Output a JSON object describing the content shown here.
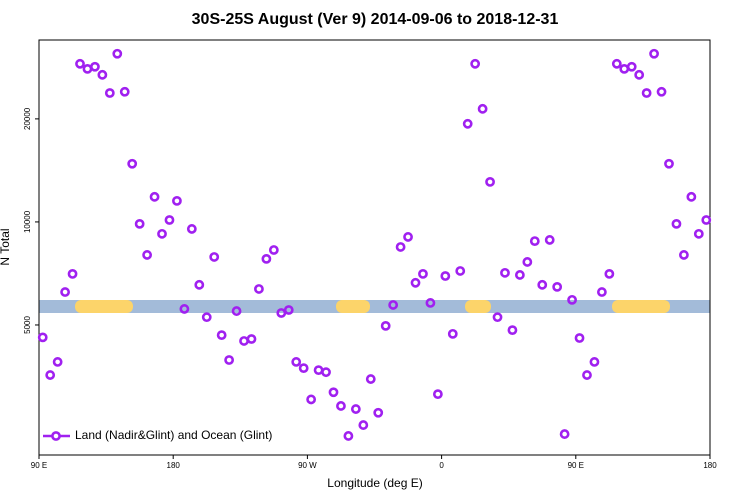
{
  "chart_data": {
    "type": "scatter",
    "title": "30S-25S August (Ver 9)   2014-09-06 to 2018-12-31",
    "x_label": "Longitude (deg E)",
    "y_label": "N Total",
    "xlim": [
      90,
      540
    ],
    "xticks": [
      {
        "value": 90,
        "label": "90 E"
      },
      {
        "value": 180,
        "label": "180"
      },
      {
        "value": 270,
        "label": "90 W"
      },
      {
        "value": 360,
        "label": "0"
      },
      {
        "value": 450,
        "label": "90 E"
      },
      {
        "value": 540,
        "label": "180"
      }
    ],
    "ylim": [
      2085,
      34000
    ],
    "yticks": [
      5000,
      10000,
      20000
    ],
    "log_y": true,
    "grid": false,
    "legend": "bottom-left",
    "series": [
      {
        "name": "Land (Nadir&Glint) and Ocean (Glint)",
        "color": "#a020f0",
        "x": [
          92.5,
          97.5,
          102.5,
          107.5,
          112.5,
          117.5,
          122.5,
          127.5,
          132.5,
          137.5,
          142.5,
          147.5,
          152.5,
          157.5,
          162.5,
          167.5,
          172.5,
          177.5,
          182.5,
          187.5,
          192.5,
          197.5,
          202.5,
          207.5,
          212.5,
          217.5,
          222.5,
          227.5,
          232.5,
          237.5,
          242.5,
          247.5,
          252.5,
          257.5,
          262.5,
          267.5,
          272.5,
          277.5,
          282.5,
          287.5,
          292.5,
          297.5,
          302.5,
          307.5,
          312.5,
          317.5,
          322.5,
          327.5,
          332.5,
          337.5,
          342.5,
          347.5,
          352.5,
          357.5,
          362.5,
          367.5,
          372.5,
          377.5,
          382.5,
          387.5,
          392.5,
          397.5,
          402.5,
          407.5,
          412.5,
          417.5,
          422.5,
          427.5,
          432.5,
          437.5,
          442.5,
          447.5,
          452.5,
          457.5,
          462.5,
          467.5,
          472.5,
          477.5,
          482.5,
          487.5,
          492.5,
          497.5,
          502.5,
          507.5,
          512.5,
          517.5,
          522.5,
          527.5,
          532.5,
          537.5
        ],
        "values": [
          4600,
          3570,
          3900,
          6240,
          7050,
          28970,
          28000,
          28400,
          26900,
          23800,
          31000,
          24000,
          14790,
          9870,
          8010,
          11840,
          9230,
          10130,
          11520,
          5570,
          9540,
          6550,
          5270,
          7900,
          4670,
          3950,
          5490,
          4490,
          4550,
          6370,
          7800,
          8280,
          5420,
          5530,
          3900,
          3740,
          3030,
          3690,
          3640,
          3180,
          2900,
          2370,
          2840,
          2550,
          3475,
          2770,
          4970,
          5720,
          8450,
          9040,
          6640,
          7050,
          5800,
          3140,
          6950,
          4710,
          7190,
          19350,
          28970,
          21400,
          13090,
          5270,
          7100,
          4830,
          7000,
          7640,
          8790,
          6550,
          8860,
          6460,
          2400,
          5920,
          4580,
          3570,
          3900,
          6240,
          7050,
          28970,
          28000,
          28400,
          26900,
          23800,
          31000,
          24000,
          14790,
          9870,
          8010,
          11840,
          9230,
          10130
        ]
      }
    ]
  }
}
